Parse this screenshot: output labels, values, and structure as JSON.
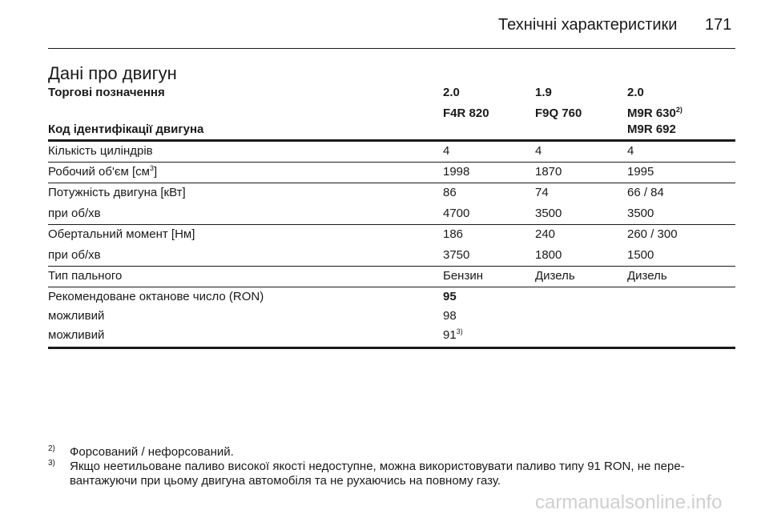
{
  "header": {
    "title": "Технічні характеристики",
    "page": "171"
  },
  "section_title": "Дані про двигун",
  "table": {
    "head": {
      "trade_label": "Торгові позначення",
      "trade_names": [
        "2.0",
        "1.9",
        "2.0"
      ],
      "code_label": "Код ідентифікації двигуна",
      "codes": [
        {
          "text": "F4R 820"
        },
        {
          "text": "F9Q 760"
        },
        {
          "text": "M9R 630",
          "sup": "2)",
          "alt": "M9R 692"
        }
      ]
    },
    "groups": [
      [
        {
          "label": {
            "text": "Кількість циліндрів"
          },
          "values": [
            {
              "text": "4"
            },
            {
              "text": "4"
            },
            {
              "text": "4"
            }
          ]
        }
      ],
      [
        {
          "label": {
            "text": "Робочий об'єм [см",
            "sup": "3",
            "after": "]"
          },
          "values": [
            {
              "text": "1998"
            },
            {
              "text": "1870"
            },
            {
              "text": "1995"
            }
          ]
        }
      ],
      [
        {
          "label": {
            "text": "Потужність двигуна [кВт]"
          },
          "values": [
            {
              "text": "86"
            },
            {
              "text": "74"
            },
            {
              "text": "66 / 84"
            }
          ]
        },
        {
          "label": {
            "text": "при об/хв"
          },
          "values": [
            {
              "text": "4700"
            },
            {
              "text": "3500"
            },
            {
              "text": "3500"
            }
          ]
        }
      ],
      [
        {
          "label": {
            "text": "Обертальний момент [Нм]"
          },
          "values": [
            {
              "text": "186"
            },
            {
              "text": "240"
            },
            {
              "text": "260 / 300"
            }
          ]
        },
        {
          "label": {
            "text": "при об/хв"
          },
          "values": [
            {
              "text": "3750"
            },
            {
              "text": "1800"
            },
            {
              "text": "1500"
            }
          ]
        }
      ],
      [
        {
          "label": {
            "text": "Тип пального"
          },
          "values": [
            {
              "text": "Бензин"
            },
            {
              "text": "Дизель"
            },
            {
              "text": "Дизель"
            }
          ]
        }
      ],
      [
        {
          "label": {
            "text": "Рекомендоване октанове число (RON)"
          },
          "values": [
            {
              "text": "95",
              "bold": true
            }
          ]
        },
        {
          "label": {
            "text": "можливий"
          },
          "values": [
            {
              "text": "98"
            }
          ]
        },
        {
          "label": {
            "text": "можливий"
          },
          "values": [
            {
              "text": "91",
              "sup": "3)"
            }
          ]
        }
      ]
    ]
  },
  "footnotes": [
    {
      "mark": "2)",
      "lines": [
        "Форсований / нефорсований."
      ]
    },
    {
      "mark": "3)",
      "lines": [
        "Якщо неетильоване паливо високої якості недоступне, можна використовувати паливо типу 91 RON, не пере-",
        "вантажуючи при цьому двигуна автомобіля та не рухаючись на повному газу."
      ]
    }
  ],
  "watermark": "carmanualsonline.info"
}
